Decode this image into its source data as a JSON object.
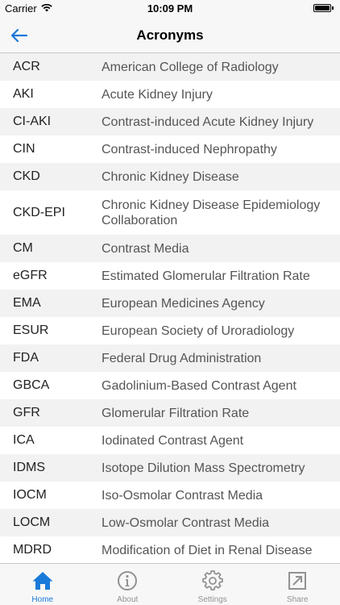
{
  "status_bar": {
    "carrier": "Carrier",
    "time": "10:09 PM"
  },
  "nav": {
    "title": "Acronyms",
    "back_icon": "back-arrow-icon"
  },
  "acronyms": [
    {
      "acr": "ACR",
      "def": "American College of Radiology"
    },
    {
      "acr": "AKI",
      "def": "Acute Kidney Injury"
    },
    {
      "acr": "CI-AKI",
      "def": "Contrast-induced Acute Kidney Injury"
    },
    {
      "acr": "CIN",
      "def": "Contrast-induced Nephropathy"
    },
    {
      "acr": "CKD",
      "def": "Chronic Kidney Disease"
    },
    {
      "acr": "CKD-EPI",
      "def": "Chronic Kidney Disease Epidemiology Collaboration"
    },
    {
      "acr": "CM",
      "def": "Contrast Media"
    },
    {
      "acr": "eGFR",
      "def": "Estimated Glomerular Filtration Rate"
    },
    {
      "acr": "EMA",
      "def": "European Medicines Agency"
    },
    {
      "acr": "ESUR",
      "def": "European Society of Uroradiology"
    },
    {
      "acr": "FDA",
      "def": "Federal Drug Administration"
    },
    {
      "acr": "GBCA",
      "def": "Gadolinium-Based Contrast Agent"
    },
    {
      "acr": "GFR",
      "def": "Glomerular Filtration Rate"
    },
    {
      "acr": "ICA",
      "def": "Iodinated Contrast Agent"
    },
    {
      "acr": "IDMS",
      "def": "Isotope Dilution Mass Spectrometry"
    },
    {
      "acr": "IOCM",
      "def": "Iso-Osmolar Contrast Media"
    },
    {
      "acr": "LOCM",
      "def": "Low-Osmolar Contrast Media"
    },
    {
      "acr": "MDRD",
      "def": "Modification of Diet in Renal Disease"
    }
  ],
  "tabs": [
    {
      "label": "Home",
      "icon": "home-icon",
      "active": true
    },
    {
      "label": "About",
      "icon": "info-icon",
      "active": false
    },
    {
      "label": "Settings",
      "icon": "gear-icon",
      "active": false
    },
    {
      "label": "Share",
      "icon": "share-icon",
      "active": false
    }
  ],
  "colors": {
    "accent": "#1a7ad9",
    "inactive_tab": "#929292",
    "row_alt": "#f2f2f2"
  }
}
